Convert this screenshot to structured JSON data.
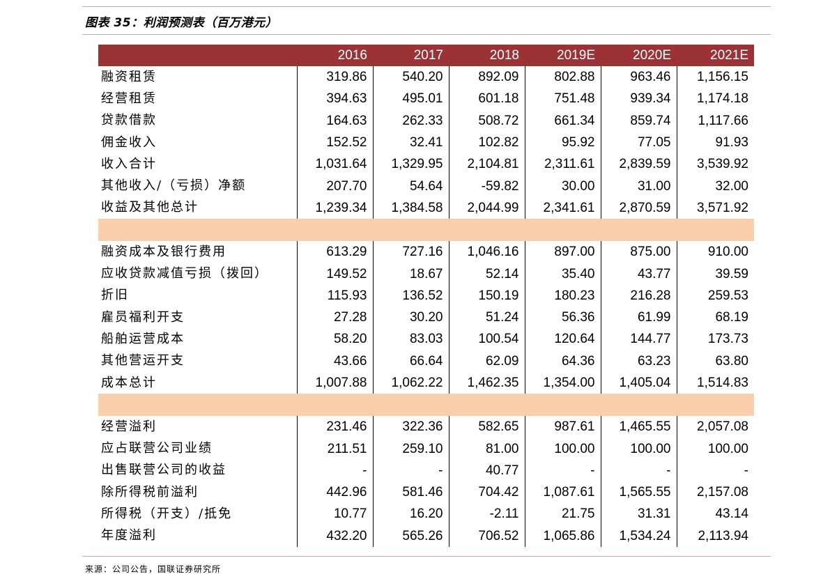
{
  "title": "图表 35：利润预测表（百万港元）",
  "columns": [
    "",
    "2016",
    "2017",
    "2018",
    "2019E",
    "2020E",
    "2021E"
  ],
  "sections": [
    [
      {
        "label": "融资租赁",
        "values": [
          "319.86",
          "540.20",
          "892.09",
          "802.88",
          "963.46",
          "1,156.15"
        ]
      },
      {
        "label": "经营租赁",
        "values": [
          "394.63",
          "495.01",
          "601.18",
          "751.48",
          "939.34",
          "1,174.18"
        ]
      },
      {
        "label": "贷款借款",
        "values": [
          "164.63",
          "262.33",
          "508.72",
          "661.34",
          "859.74",
          "1,117.66"
        ]
      },
      {
        "label": "佣金收入",
        "values": [
          "152.52",
          "32.41",
          "102.82",
          "95.92",
          "77.05",
          "91.93"
        ]
      },
      {
        "label": "收入合计",
        "values": [
          "1,031.64",
          "1,329.95",
          "2,104.81",
          "2,311.61",
          "2,839.59",
          "3,539.92"
        ]
      },
      {
        "label": "其他收入/（亏损）净额",
        "values": [
          "207.70",
          "54.64",
          "-59.82",
          "30.00",
          "31.00",
          "32.00"
        ]
      },
      {
        "label": "收益及其他总计",
        "values": [
          "1,239.34",
          "1,384.58",
          "2,044.99",
          "2,341.61",
          "2,870.59",
          "3,571.92"
        ]
      }
    ],
    [
      {
        "label": "融资成本及银行费用",
        "values": [
          "613.29",
          "727.16",
          "1,046.16",
          "897.00",
          "875.00",
          "910.00"
        ]
      },
      {
        "label": "应收贷款减值亏损（拨回）",
        "values": [
          "149.52",
          "18.67",
          "52.14",
          "35.40",
          "43.77",
          "39.59"
        ]
      },
      {
        "label": "折旧",
        "values": [
          "115.93",
          "136.52",
          "150.19",
          "180.23",
          "216.28",
          "259.53"
        ]
      },
      {
        "label": "雇员福利开支",
        "values": [
          "27.28",
          "30.20",
          "51.24",
          "56.36",
          "61.99",
          "68.19"
        ]
      },
      {
        "label": "船舶运营成本",
        "values": [
          "58.20",
          "83.03",
          "100.54",
          "120.64",
          "144.77",
          "173.73"
        ]
      },
      {
        "label": "其他营运开支",
        "values": [
          "43.66",
          "66.64",
          "62.09",
          "64.36",
          "63.23",
          "63.80"
        ]
      },
      {
        "label": "成本总计",
        "values": [
          "1,007.88",
          "1,062.22",
          "1,462.35",
          "1,354.00",
          "1,405.04",
          "1,514.83"
        ]
      }
    ],
    [
      {
        "label": "经营溢利",
        "values": [
          "231.46",
          "322.36",
          "582.65",
          "987.61",
          "1,465.55",
          "2,057.08"
        ]
      },
      {
        "label": "应占联营公司业绩",
        "values": [
          "211.51",
          "259.10",
          "81.00",
          "100.00",
          "100.00",
          "100.00"
        ]
      },
      {
        "label": "出售联营公司的收益",
        "values": [
          "-",
          "-",
          "40.77",
          "-",
          "-",
          "-"
        ]
      },
      {
        "label": "除所得税前溢利",
        "values": [
          "442.96",
          "581.46",
          "704.42",
          "1,087.61",
          "1,565.55",
          "2,157.08"
        ]
      },
      {
        "label": "所得税（开支）/抵免",
        "values": [
          "10.77",
          "16.20",
          "-2.11",
          "21.75",
          "31.31",
          "43.14"
        ]
      },
      {
        "label": "年度溢利",
        "values": [
          "432.20",
          "565.26",
          "706.52",
          "1,065.86",
          "1,534.24",
          "2,113.94"
        ]
      }
    ]
  ],
  "source": "来源：公司公告，国联证券研究所"
}
